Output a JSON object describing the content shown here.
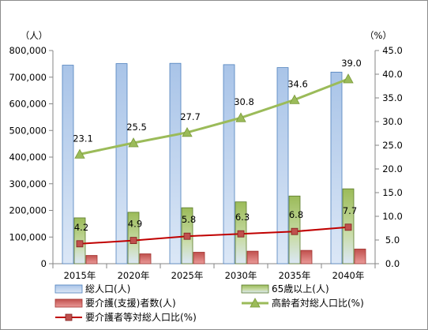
{
  "chart_data": {
    "type": "bar",
    "left_unit": "（人）",
    "right_unit": "（%）",
    "categories": [
      "2015年",
      "2020年",
      "2025年",
      "2030年",
      "2035年",
      "2040年"
    ],
    "ylim": [
      0,
      800000
    ],
    "y_ticks": [
      "0",
      "100,000",
      "200,000",
      "300,000",
      "400,000",
      "500,000",
      "600,000",
      "700,000",
      "800,000"
    ],
    "y2lim": [
      0,
      45
    ],
    "y2_ticks": [
      "0.0",
      "5.0",
      "10.0",
      "15.0",
      "20.0",
      "25.0",
      "30.0",
      "35.0",
      "40.0",
      "45.0"
    ],
    "bar_series": [
      {
        "name": "総人口(人)",
        "color": "#95b3d7",
        "values": [
          745000,
          751000,
          752000,
          747000,
          736000,
          719000
        ]
      },
      {
        "name": "65歳以上(人)",
        "color": "#9bbb59",
        "values": [
          172000,
          193000,
          210000,
          232000,
          254000,
          281000
        ]
      },
      {
        "name": "要介護(支援)者数(人)",
        "color": "#c0504d",
        "values": [
          31000,
          37000,
          43000,
          47000,
          50000,
          55000
        ]
      }
    ],
    "line_series": [
      {
        "name": "高齢者対総人口比(%)",
        "color": "#9bbb59",
        "marker": "triangle",
        "values": [
          23.1,
          25.5,
          27.7,
          30.8,
          34.6,
          39.0
        ],
        "labels": [
          "23.1",
          "25.5",
          "27.7",
          "30.8",
          "34.6",
          "39.0"
        ]
      },
      {
        "name": "要介護者等対総人口比(%)",
        "color": "#c00000",
        "marker": "square",
        "values": [
          4.2,
          4.9,
          5.8,
          6.3,
          6.8,
          7.7
        ],
        "labels": [
          "4.2",
          "4.9",
          "5.8",
          "6.3",
          "6.8",
          "7.7"
        ]
      }
    ],
    "legend_position": "bottom",
    "grid": false
  }
}
